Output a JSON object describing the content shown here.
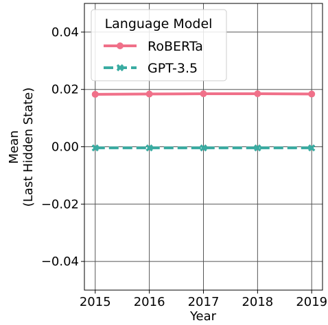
{
  "chart_data": {
    "type": "line",
    "x": [
      2015,
      2016,
      2017,
      2018,
      2019
    ],
    "xlim": [
      2014.8,
      2019.2
    ],
    "xticks": [
      2015,
      2016,
      2017,
      2018,
      2019
    ],
    "ylim": [
      -0.05,
      0.05
    ],
    "yticks": [
      {
        "value": -0.04,
        "label": "−0.04"
      },
      {
        "value": -0.02,
        "label": "−0.02"
      },
      {
        "value": 0,
        "label": "0.00"
      },
      {
        "value": 0.02,
        "label": "0.02"
      },
      {
        "value": 0.04,
        "label": "0.04"
      }
    ],
    "xlabel": "Year",
    "ylabel": [
      "Mean",
      "(Last Hidden State)"
    ],
    "grid": true,
    "legend_title": "Language Model",
    "legend": "upper left",
    "series": [
      {
        "name": "RoBERTa",
        "color": "#f07089",
        "marker": "circle",
        "dash": false,
        "values": [
          0.0183,
          0.0184,
          0.0185,
          0.0185,
          0.0184
        ]
      },
      {
        "name": "GPT-3.5",
        "color": "#3aaca2",
        "marker": "x",
        "dash": true,
        "values": [
          -0.0004,
          -0.0004,
          -0.0004,
          -0.0004,
          -0.0004
        ]
      }
    ]
  }
}
